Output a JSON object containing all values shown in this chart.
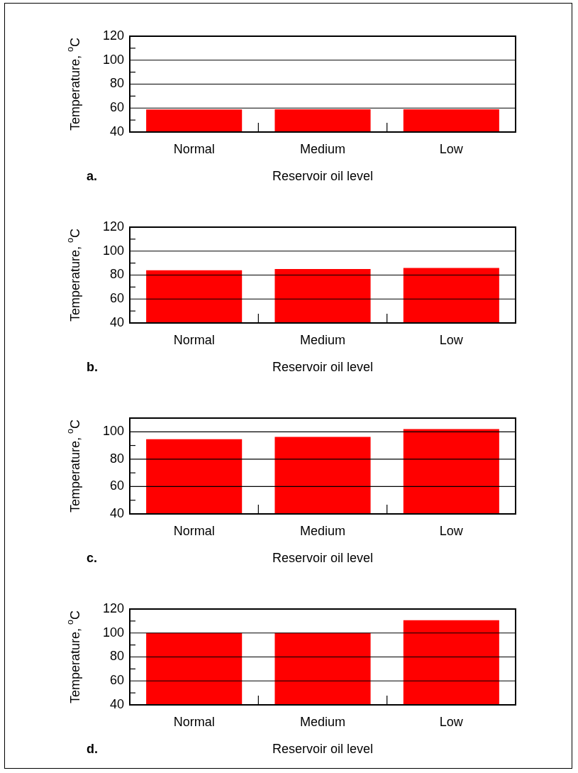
{
  "chart_data": [
    {
      "type": "bar",
      "ylabel": "Temperature, $^{o}$C",
      "xlabel": "Reservoir oil level",
      "categories": [
        "Normal",
        "Medium",
        "Low"
      ],
      "values": [
        58.8,
        59,
        59
      ],
      "color": "#ff0000",
      "ylim": [
        40,
        120
      ],
      "yticks": [
        40,
        {
          "value": 50,
          "label": null
        },
        60,
        {
          "value": 70,
          "label": null
        },
        80,
        {
          "value": 90,
          "label": null
        },
        100,
        {
          "value": 110,
          "label": null
        },
        120
      ],
      "grid": "y",
      "annotations": [
        "a."
      ]
    },
    {
      "type": "bar",
      "ylabel": "Temperature, $^{o}$C",
      "xlabel": "Reservoir oil level",
      "categories": [
        "Normal",
        "Medium",
        "Low"
      ],
      "values": [
        84,
        85,
        86
      ],
      "color": "#ff0000",
      "ylim": [
        40,
        120
      ],
      "yticks": [
        40,
        {
          "value": 50,
          "label": null
        },
        60,
        {
          "value": 70,
          "label": null
        },
        80,
        {
          "value": 90,
          "label": null
        },
        100,
        {
          "value": 110,
          "label": null
        },
        120
      ],
      "grid": "y",
      "annotations": [
        "b."
      ]
    },
    {
      "type": "bar",
      "ylabel": "Temperature, $^{o}$C",
      "xlabel": "Reservoir oil level",
      "categories": [
        "Normal",
        "Medium",
        "Low"
      ],
      "values": [
        94.6,
        96.3,
        102
      ],
      "color": "#ff0000",
      "ylim": [
        40,
        110
      ],
      "yticks": [
        40,
        {
          "value": 50,
          "label": null
        },
        60,
        {
          "value": 70,
          "label": null
        },
        80,
        {
          "value": 90,
          "label": null
        },
        100
      ],
      "grid": "y",
      "annotations": [
        "c."
      ]
    },
    {
      "type": "bar",
      "ylabel": "Temperature, $^{o}$C",
      "xlabel": "Reservoir oil level",
      "categories": [
        "Normal",
        "Medium",
        "Low"
      ],
      "values": [
        100,
        100,
        110.7
      ],
      "color": "#ff0000",
      "ylim": [
        40,
        120
      ],
      "yticks": [
        40,
        {
          "value": 50,
          "label": null
        },
        60,
        {
          "value": 70,
          "label": null
        },
        80,
        {
          "value": 90,
          "label": null
        },
        100,
        {
          "value": 110,
          "label": null
        },
        120
      ],
      "grid": "y",
      "annotations": [
        "d."
      ]
    }
  ]
}
